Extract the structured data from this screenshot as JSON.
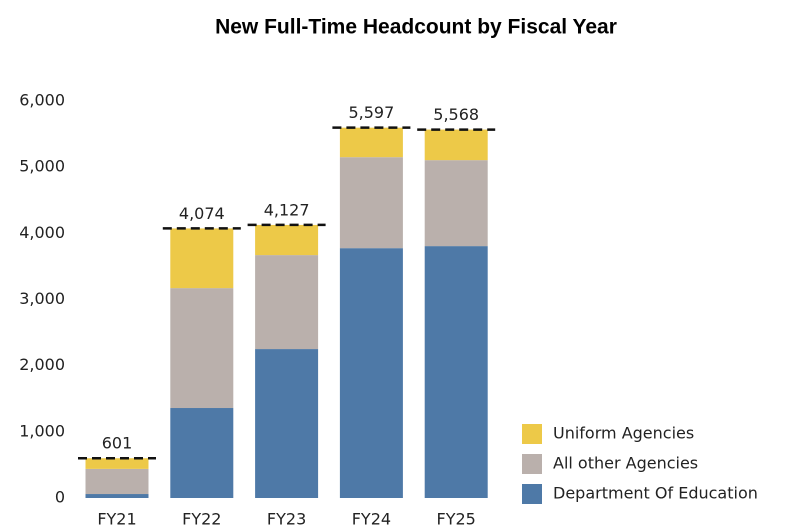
{
  "chart_data": {
    "type": "stacked_bar",
    "title": "New Full-Time Headcount by Fiscal Year",
    "categories": [
      "FY21",
      "FY22",
      "FY23",
      "FY24",
      "FY25"
    ],
    "series": [
      {
        "name": "Department Of Education",
        "color": "#4e79a7",
        "values": [
          60,
          1360,
          2251,
          3776,
          3807
        ]
      },
      {
        "name": "All other Agencies",
        "color": "#bab0ac",
        "values": [
          380,
          1812,
          1420,
          1375,
          1299
        ]
      },
      {
        "name": "Uniform Agencies",
        "color": "#edc948",
        "values": [
          161,
          902,
          456,
          446,
          462
        ]
      }
    ],
    "totals": [
      601,
      4074,
      4127,
      5597,
      5568
    ],
    "total_labels": [
      "601",
      "4,074",
      "4,127",
      "5,597",
      "5,568"
    ],
    "ylim": [
      0,
      6000
    ],
    "yticks": [
      0,
      {
        "value": 1000,
        "label": "1,000"
      },
      {
        "value": 2000,
        "label": "2,000"
      },
      {
        "value": 3000,
        "label": "3,000"
      },
      {
        "value": 4000,
        "label": "4,000"
      },
      {
        "value": 5000,
        "label": "5,000"
      },
      {
        "value": 6000,
        "label": "6,000"
      }
    ]
  }
}
